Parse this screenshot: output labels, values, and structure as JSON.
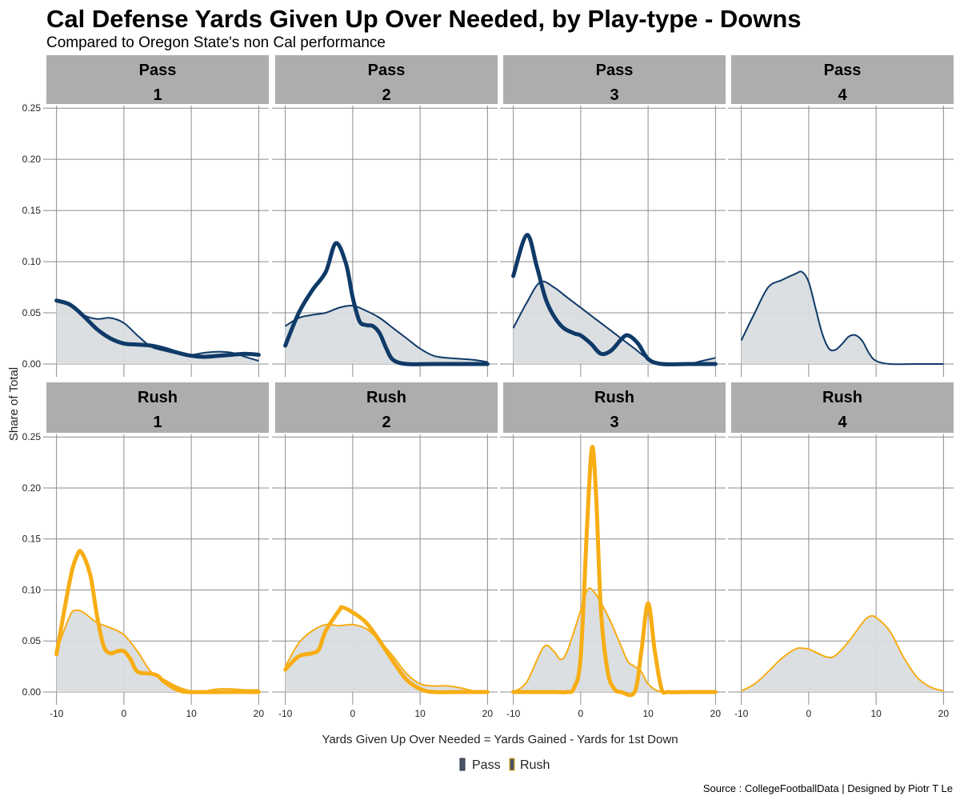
{
  "chart_data": {
    "type": "area",
    "title": "Cal Defense Yards Given Up Over Needed, by Play-type - Downs",
    "subtitle": "Compared to Oregon State's non Cal performance",
    "xlabel": "Yards Given Up Over Needed = Yards Gained - Yards for 1st Down",
    "ylabel": "Share of Total",
    "caption": "Source : CollegeFootballData | Designed by Piotr T Le",
    "xlim": [
      -11.5,
      21.5
    ],
    "ylim": [
      -0.0094,
      0.2525
    ],
    "xticks": [
      "-10",
      "0",
      "10",
      "20"
    ],
    "xtick_values": [
      -10,
      0,
      10,
      20
    ],
    "yticks": [
      "0.00",
      "0.05",
      "0.10",
      "0.15",
      "0.20",
      "0.25"
    ],
    "ytick_values": [
      0,
      0.05,
      0.1,
      0.15,
      0.2,
      0.25
    ],
    "grid": true,
    "legend": {
      "position": "bottom",
      "entries": [
        "Pass",
        "Rush"
      ]
    },
    "colors": {
      "Pass": "#0f3a68",
      "Rush": "#f7ad14",
      "fill": "#d9dde0",
      "strip": "#adadad",
      "grid": "#8c8c8c",
      "legend_pass": "#4a5565"
    },
    "series_note": [
      "Oregon State non-Cal (thin line, shaded)",
      "Cal (thick line)"
    ],
    "panels": [
      {
        "play": "Pass",
        "down": "1",
        "osu": [
          [
            -10,
            0.062
          ],
          [
            -8,
            0.058
          ],
          [
            -6,
            0.048
          ],
          [
            -4,
            0.044
          ],
          [
            -2,
            0.045
          ],
          [
            0,
            0.04
          ],
          [
            2,
            0.028
          ],
          [
            4,
            0.017
          ],
          [
            6,
            0.013
          ],
          [
            8,
            0.01
          ],
          [
            10,
            0.009
          ],
          [
            12,
            0.011
          ],
          [
            14,
            0.012
          ],
          [
            16,
            0.011
          ],
          [
            18,
            0.007
          ],
          [
            20,
            0.003
          ]
        ],
        "cal": [
          [
            -10,
            0.062
          ],
          [
            -8,
            0.058
          ],
          [
            -6,
            0.047
          ],
          [
            -4,
            0.034
          ],
          [
            -2,
            0.025
          ],
          [
            0,
            0.02
          ],
          [
            2,
            0.019
          ],
          [
            4,
            0.018
          ],
          [
            6,
            0.015
          ],
          [
            8,
            0.011
          ],
          [
            10,
            0.008
          ],
          [
            12,
            0.007
          ],
          [
            14,
            0.008
          ],
          [
            16,
            0.009
          ],
          [
            18,
            0.01
          ],
          [
            20,
            0.009
          ]
        ]
      },
      {
        "play": "Pass",
        "down": "2",
        "osu": [
          [
            -10,
            0.037
          ],
          [
            -8,
            0.045
          ],
          [
            -6,
            0.048
          ],
          [
            -4,
            0.05
          ],
          [
            -2,
            0.055
          ],
          [
            0,
            0.057
          ],
          [
            2,
            0.052
          ],
          [
            4,
            0.045
          ],
          [
            6,
            0.035
          ],
          [
            8,
            0.025
          ],
          [
            10,
            0.015
          ],
          [
            12,
            0.008
          ],
          [
            14,
            0.006
          ],
          [
            16,
            0.005
          ],
          [
            18,
            0.004
          ],
          [
            20,
            0.002
          ]
        ],
        "cal": [
          [
            -10,
            0.018
          ],
          [
            -8,
            0.05
          ],
          [
            -6,
            0.072
          ],
          [
            -4,
            0.09
          ],
          [
            -2.5,
            0.118
          ],
          [
            -1,
            0.098
          ],
          [
            0,
            0.065
          ],
          [
            1,
            0.042
          ],
          [
            2,
            0.038
          ],
          [
            3,
            0.037
          ],
          [
            4,
            0.03
          ],
          [
            5,
            0.015
          ],
          [
            6,
            0.004
          ],
          [
            8,
            0.0
          ],
          [
            12,
            0.0
          ],
          [
            16,
            0.0
          ],
          [
            20,
            0.0
          ]
        ]
      },
      {
        "play": "Pass",
        "down": "3",
        "osu": [
          [
            -10,
            0.035
          ],
          [
            -8,
            0.06
          ],
          [
            -6,
            0.08
          ],
          [
            -4,
            0.075
          ],
          [
            -2,
            0.065
          ],
          [
            0,
            0.055
          ],
          [
            2,
            0.045
          ],
          [
            4,
            0.035
          ],
          [
            6,
            0.025
          ],
          [
            8,
            0.015
          ],
          [
            10,
            0.005
          ],
          [
            12,
            0.001
          ],
          [
            14,
            0.0
          ],
          [
            16,
            0.0
          ],
          [
            18,
            0.003
          ],
          [
            20,
            0.006
          ]
        ],
        "cal": [
          [
            -10,
            0.086
          ],
          [
            -8,
            0.126
          ],
          [
            -6.5,
            0.095
          ],
          [
            -5,
            0.06
          ],
          [
            -3,
            0.038
          ],
          [
            -1,
            0.03
          ],
          [
            0,
            0.028
          ],
          [
            1.5,
            0.02
          ],
          [
            3,
            0.01
          ],
          [
            4.5,
            0.013
          ],
          [
            6,
            0.024
          ],
          [
            7,
            0.028
          ],
          [
            8.5,
            0.02
          ],
          [
            10,
            0.005
          ],
          [
            12,
            0.0
          ],
          [
            16,
            0.0
          ],
          [
            20,
            0.0
          ]
        ]
      },
      {
        "play": "Pass",
        "down": "4",
        "osu": [
          [
            -10,
            0.023
          ],
          [
            -8,
            0.05
          ],
          [
            -6,
            0.075
          ],
          [
            -4,
            0.082
          ],
          [
            -2,
            0.088
          ],
          [
            -1,
            0.09
          ],
          [
            0,
            0.08
          ],
          [
            1,
            0.055
          ],
          [
            2,
            0.03
          ],
          [
            3,
            0.015
          ],
          [
            4,
            0.014
          ],
          [
            5,
            0.02
          ],
          [
            6,
            0.027
          ],
          [
            7,
            0.028
          ],
          [
            8,
            0.022
          ],
          [
            9,
            0.01
          ],
          [
            10,
            0.003
          ],
          [
            12,
            0.0
          ],
          [
            16,
            0.0
          ],
          [
            20,
            0.0
          ]
        ],
        "cal": []
      },
      {
        "play": "Rush",
        "down": "1",
        "osu": [
          [
            -10,
            0.04
          ],
          [
            -8,
            0.075
          ],
          [
            -7,
            0.08
          ],
          [
            -6,
            0.078
          ],
          [
            -4,
            0.068
          ],
          [
            -2,
            0.063
          ],
          [
            0,
            0.056
          ],
          [
            2,
            0.04
          ],
          [
            4,
            0.02
          ],
          [
            6,
            0.012
          ],
          [
            8,
            0.005
          ],
          [
            10,
            0.001
          ],
          [
            12,
            0.001
          ],
          [
            14,
            0.003
          ],
          [
            16,
            0.003
          ],
          [
            18,
            0.002
          ],
          [
            20,
            0.002
          ]
        ],
        "cal": [
          [
            -10,
            0.037
          ],
          [
            -8,
            0.11
          ],
          [
            -7,
            0.133
          ],
          [
            -6.3,
            0.137
          ],
          [
            -5,
            0.115
          ],
          [
            -4,
            0.075
          ],
          [
            -3,
            0.045
          ],
          [
            -2,
            0.038
          ],
          [
            -1,
            0.04
          ],
          [
            0,
            0.04
          ],
          [
            1,
            0.032
          ],
          [
            2,
            0.02
          ],
          [
            4,
            0.018
          ],
          [
            5,
            0.016
          ],
          [
            6,
            0.01
          ],
          [
            8,
            0.002
          ],
          [
            10,
            0.0
          ],
          [
            15,
            0.0
          ],
          [
            20,
            0.0
          ]
        ]
      },
      {
        "play": "Rush",
        "down": "2",
        "osu": [
          [
            -10,
            0.025
          ],
          [
            -8,
            0.048
          ],
          [
            -6,
            0.06
          ],
          [
            -4,
            0.066
          ],
          [
            -2,
            0.065
          ],
          [
            0,
            0.066
          ],
          [
            2,
            0.062
          ],
          [
            4,
            0.05
          ],
          [
            6,
            0.035
          ],
          [
            8,
            0.018
          ],
          [
            10,
            0.008
          ],
          [
            12,
            0.006
          ],
          [
            14,
            0.006
          ],
          [
            16,
            0.004
          ],
          [
            18,
            0.001
          ],
          [
            20,
            0.0
          ]
        ],
        "cal": [
          [
            -10,
            0.022
          ],
          [
            -8,
            0.035
          ],
          [
            -6,
            0.038
          ],
          [
            -5,
            0.042
          ],
          [
            -4,
            0.06
          ],
          [
            -2,
            0.08
          ],
          [
            -1.5,
            0.083
          ],
          [
            0,
            0.078
          ],
          [
            2,
            0.068
          ],
          [
            4,
            0.05
          ],
          [
            6,
            0.03
          ],
          [
            8,
            0.012
          ],
          [
            10,
            0.003
          ],
          [
            12,
            0.0
          ],
          [
            16,
            0.0
          ],
          [
            20,
            0.0
          ]
        ]
      },
      {
        "play": "Rush",
        "down": "3",
        "osu": [
          [
            -10,
            0.0
          ],
          [
            -8,
            0.01
          ],
          [
            -5.5,
            0.044
          ],
          [
            -4,
            0.04
          ],
          [
            -3,
            0.032
          ],
          [
            -2,
            0.04
          ],
          [
            0,
            0.08
          ],
          [
            1,
            0.1
          ],
          [
            2,
            0.098
          ],
          [
            4,
            0.075
          ],
          [
            6,
            0.045
          ],
          [
            7,
            0.03
          ],
          [
            8,
            0.025
          ],
          [
            9,
            0.02
          ],
          [
            10,
            0.008
          ],
          [
            12,
            0.0
          ],
          [
            16,
            0.0
          ],
          [
            20,
            0.0
          ]
        ],
        "cal": [
          [
            -10,
            0.0
          ],
          [
            -4,
            0.0
          ],
          [
            -2,
            0.0
          ],
          [
            -1,
            0.004
          ],
          [
            0,
            0.035
          ],
          [
            1,
            0.17
          ],
          [
            1.7,
            0.24
          ],
          [
            2.3,
            0.19
          ],
          [
            3,
            0.08
          ],
          [
            4,
            0.02
          ],
          [
            5,
            0.003
          ],
          [
            6,
            0.0
          ],
          [
            8,
            0.0
          ],
          [
            9,
            0.04
          ],
          [
            10,
            0.087
          ],
          [
            11,
            0.04
          ],
          [
            12,
            0.003
          ],
          [
            13,
            0.0
          ],
          [
            16,
            0.0
          ],
          [
            20,
            0.0
          ]
        ]
      },
      {
        "play": "Rush",
        "down": "4",
        "osu": [
          [
            -10,
            0.001
          ],
          [
            -8,
            0.008
          ],
          [
            -6,
            0.02
          ],
          [
            -4,
            0.033
          ],
          [
            -2,
            0.042
          ],
          [
            -1,
            0.043
          ],
          [
            0,
            0.042
          ],
          [
            2,
            0.036
          ],
          [
            3,
            0.034
          ],
          [
            4,
            0.036
          ],
          [
            6,
            0.05
          ],
          [
            8,
            0.068
          ],
          [
            9,
            0.074
          ],
          [
            10,
            0.073
          ],
          [
            12,
            0.06
          ],
          [
            14,
            0.035
          ],
          [
            16,
            0.015
          ],
          [
            18,
            0.005
          ],
          [
            20,
            0.001
          ]
        ],
        "cal": []
      }
    ]
  }
}
